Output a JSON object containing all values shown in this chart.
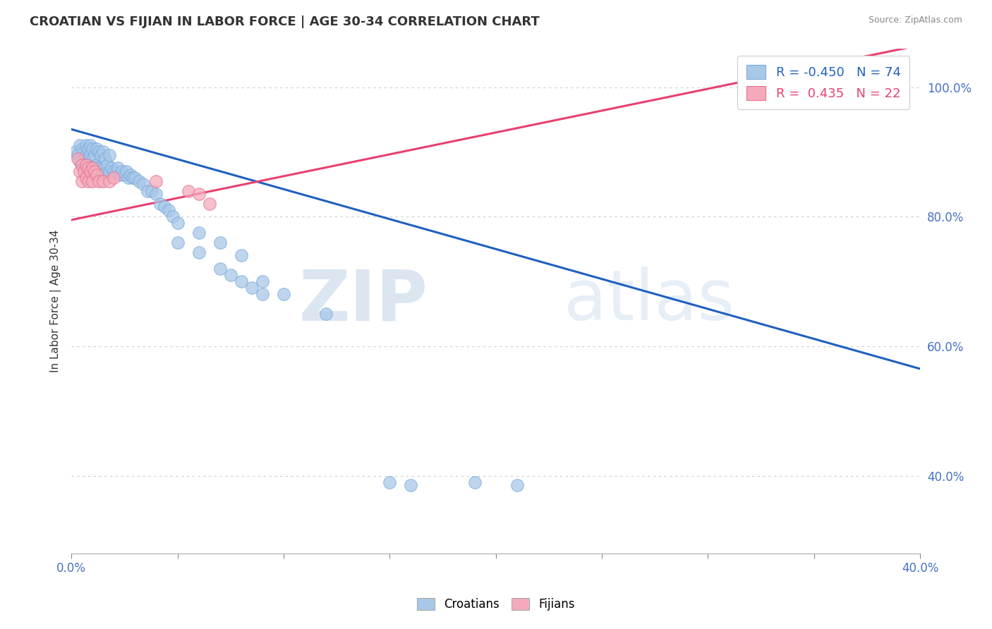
{
  "title": "CROATIAN VS FIJIAN IN LABOR FORCE | AGE 30-34 CORRELATION CHART",
  "source": "Source: ZipAtlas.com",
  "ylabel": "In Labor Force | Age 30-34",
  "xlim": [
    0.0,
    0.4
  ],
  "ylim": [
    0.28,
    1.06
  ],
  "croatian_color": "#a8c8e8",
  "croatian_edge_color": "#7aaadc",
  "fijian_color": "#f4aabb",
  "fijian_edge_color": "#e87090",
  "croatian_line_color": "#2060c0",
  "fijian_line_color": "#e84070",
  "legend_R_croatian": "-0.450",
  "legend_N_croatian": "74",
  "legend_R_fijian": "0.435",
  "legend_N_fijian": "22",
  "background_color": "#ffffff",
  "cro_line_x0": 0.0,
  "cro_line_y0": 0.935,
  "cro_line_x1": 0.4,
  "cro_line_y1": 0.565,
  "fij_line_x0": 0.0,
  "fij_line_y0": 0.795,
  "fij_line_x1": 0.4,
  "fij_line_y1": 1.065,
  "croatian_x": [
    0.002,
    0.003,
    0.004,
    0.004,
    0.005,
    0.005,
    0.006,
    0.006,
    0.007,
    0.007,
    0.007,
    0.008,
    0.008,
    0.008,
    0.009,
    0.009,
    0.009,
    0.01,
    0.01,
    0.01,
    0.011,
    0.011,
    0.012,
    0.012,
    0.013,
    0.013,
    0.014,
    0.014,
    0.015,
    0.015,
    0.016,
    0.016,
    0.017,
    0.018,
    0.018,
    0.019,
    0.02,
    0.021,
    0.022,
    0.023,
    0.024,
    0.025,
    0.026,
    0.027,
    0.028,
    0.029,
    0.03,
    0.032,
    0.034,
    0.036,
    0.038,
    0.04,
    0.042,
    0.044,
    0.046,
    0.048,
    0.05,
    0.06,
    0.07,
    0.08,
    0.09,
    0.1,
    0.12,
    0.05,
    0.06,
    0.07,
    0.075,
    0.08,
    0.085,
    0.09,
    0.15,
    0.16,
    0.19,
    0.21
  ],
  "croatian_y": [
    0.9,
    0.895,
    0.91,
    0.885,
    0.905,
    0.88,
    0.9,
    0.875,
    0.91,
    0.895,
    0.87,
    0.905,
    0.89,
    0.87,
    0.91,
    0.895,
    0.875,
    0.905,
    0.89,
    0.87,
    0.895,
    0.87,
    0.905,
    0.88,
    0.9,
    0.875,
    0.895,
    0.87,
    0.9,
    0.875,
    0.89,
    0.868,
    0.88,
    0.895,
    0.87,
    0.875,
    0.87,
    0.868,
    0.875,
    0.865,
    0.87,
    0.865,
    0.87,
    0.86,
    0.865,
    0.86,
    0.86,
    0.855,
    0.85,
    0.84,
    0.84,
    0.835,
    0.82,
    0.815,
    0.81,
    0.8,
    0.79,
    0.775,
    0.76,
    0.74,
    0.7,
    0.68,
    0.65,
    0.76,
    0.745,
    0.72,
    0.71,
    0.7,
    0.69,
    0.68,
    0.39,
    0.385,
    0.39,
    0.385
  ],
  "fijian_x": [
    0.003,
    0.004,
    0.005,
    0.005,
    0.006,
    0.007,
    0.007,
    0.008,
    0.008,
    0.009,
    0.01,
    0.01,
    0.011,
    0.012,
    0.013,
    0.015,
    0.018,
    0.02,
    0.04,
    0.055,
    0.06,
    0.065
  ],
  "fijian_y": [
    0.89,
    0.87,
    0.88,
    0.855,
    0.87,
    0.88,
    0.86,
    0.875,
    0.855,
    0.87,
    0.875,
    0.855,
    0.87,
    0.865,
    0.855,
    0.855,
    0.855,
    0.86,
    0.855,
    0.84,
    0.835,
    0.82
  ]
}
